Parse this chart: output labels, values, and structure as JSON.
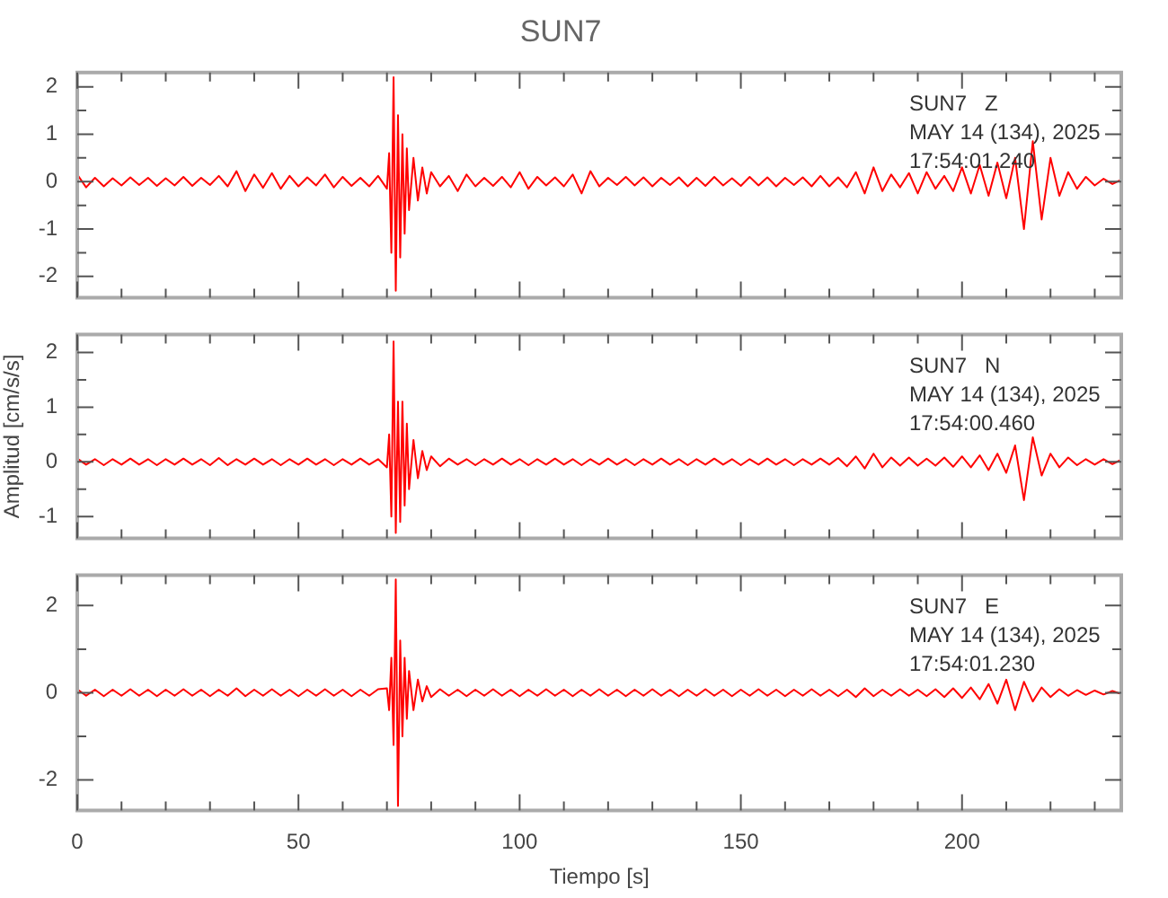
{
  "chart_data": [
    {
      "type": "line",
      "title": "SUN7",
      "tick_labels": "y",
      "annotations": [
        "SUN7   Z",
        "MAY 14 (134), 2025",
        "17:54:01.240"
      ],
      "xlim": [
        0,
        236
      ],
      "xticks": [
        0,
        {
          "value": 10,
          "label": null
        },
        {
          "value": 20,
          "label": null
        },
        {
          "value": 30,
          "label": null
        },
        {
          "value": 40,
          "label": null
        },
        50,
        {
          "value": 60,
          "label": null
        },
        {
          "value": 70,
          "label": null
        },
        {
          "value": 80,
          "label": null
        },
        {
          "value": 90,
          "label": null
        },
        100,
        {
          "value": 110,
          "label": null
        },
        {
          "value": 120,
          "label": null
        },
        {
          "value": 130,
          "label": null
        },
        {
          "value": 140,
          "label": null
        },
        150,
        {
          "value": 160,
          "label": null
        },
        {
          "value": 170,
          "label": null
        },
        {
          "value": 180,
          "label": null
        },
        {
          "value": 190,
          "label": null
        },
        200,
        {
          "value": 210,
          "label": null
        },
        {
          "value": 220,
          "label": null
        },
        {
          "value": 230,
          "label": null
        }
      ],
      "ylim": [
        -2.45,
        2.3
      ],
      "yticks": [
        -2,
        {
          "value": -1.5,
          "label": null
        },
        -1,
        {
          "value": -0.5,
          "label": null
        },
        0,
        {
          "value": 0.5,
          "label": null
        },
        1,
        {
          "value": 1.5,
          "label": null
        },
        2
      ],
      "x": [
        0,
        2,
        4,
        6,
        8,
        10,
        12,
        14,
        16,
        18,
        20,
        22,
        24,
        26,
        28,
        30,
        32,
        34,
        36,
        38,
        40,
        42,
        44,
        46,
        48,
        50,
        52,
        54,
        56,
        58,
        60,
        62,
        64,
        66,
        68,
        70,
        70.5,
        71,
        71.5,
        72,
        72.5,
        73,
        73.5,
        74,
        74.5,
        75,
        76,
        77,
        78,
        79,
        80,
        82,
        84,
        86,
        88,
        90,
        92,
        94,
        96,
        98,
        100,
        102,
        104,
        106,
        108,
        110,
        112,
        114,
        116,
        118,
        120,
        122,
        124,
        126,
        128,
        130,
        132,
        134,
        136,
        138,
        140,
        142,
        144,
        146,
        148,
        150,
        152,
        154,
        156,
        158,
        160,
        162,
        164,
        166,
        168,
        170,
        172,
        174,
        176,
        178,
        180,
        182,
        184,
        186,
        188,
        190,
        192,
        194,
        196,
        198,
        200,
        202,
        204,
        206,
        208,
        210,
        212,
        214,
        216,
        218,
        220,
        222,
        224,
        226,
        228,
        230,
        232,
        234,
        236
      ],
      "series": [
        {
          "color": "#ff0000",
          "values": [
            0.15,
            -0.12,
            0.08,
            -0.1,
            0.07,
            -0.08,
            0.09,
            -0.07,
            0.08,
            -0.09,
            0.07,
            -0.08,
            0.1,
            -0.09,
            0.08,
            -0.07,
            0.12,
            -0.1,
            0.22,
            -0.2,
            0.15,
            -0.13,
            0.18,
            -0.15,
            0.12,
            -0.1,
            0.09,
            -0.08,
            0.15,
            -0.12,
            0.1,
            -0.09,
            0.08,
            -0.1,
            0.12,
            -0.15,
            0.6,
            -1.5,
            2.2,
            -2.3,
            1.4,
            -1.6,
            1.0,
            -1.1,
            0.7,
            -0.6,
            0.5,
            -0.4,
            0.3,
            -0.25,
            0.2,
            -0.1,
            0.12,
            -0.2,
            0.15,
            -0.1,
            0.08,
            -0.09,
            0.1,
            -0.12,
            0.2,
            -0.15,
            0.1,
            -0.08,
            0.09,
            -0.1,
            0.15,
            -0.25,
            0.22,
            -0.1,
            0.08,
            -0.07,
            0.1,
            -0.08,
            0.09,
            -0.1,
            0.08,
            -0.07,
            0.09,
            -0.1,
            0.08,
            -0.09,
            0.1,
            -0.08,
            0.07,
            -0.09,
            0.1,
            -0.08,
            0.09,
            -0.1,
            0.08,
            -0.07,
            0.09,
            -0.1,
            0.12,
            -0.1,
            0.09,
            -0.12,
            0.2,
            -0.25,
            0.3,
            -0.2,
            0.15,
            -0.12,
            0.18,
            -0.25,
            0.2,
            -0.15,
            0.12,
            -0.2,
            0.3,
            -0.25,
            0.35,
            -0.3,
            0.4,
            -0.35,
            0.5,
            -1.0,
            0.85,
            -0.8,
            0.5,
            -0.3,
            0.2,
            -0.15,
            0.1,
            -0.08,
            0.06,
            -0.05,
            0.04
          ]
        }
      ]
    },
    {
      "type": "line",
      "ylabel": "Amplitud [cm/s/s]",
      "tick_labels": "y",
      "annotations": [
        "SUN7   N",
        "MAY 14 (134), 2025",
        "17:54:00.460"
      ],
      "xlim": [
        0,
        236
      ],
      "xticks": [
        0,
        {
          "value": 10,
          "label": null
        },
        {
          "value": 20,
          "label": null
        },
        {
          "value": 30,
          "label": null
        },
        {
          "value": 40,
          "label": null
        },
        50,
        {
          "value": 60,
          "label": null
        },
        {
          "value": 70,
          "label": null
        },
        {
          "value": 80,
          "label": null
        },
        {
          "value": 90,
          "label": null
        },
        100,
        {
          "value": 110,
          "label": null
        },
        {
          "value": 120,
          "label": null
        },
        {
          "value": 130,
          "label": null
        },
        {
          "value": 140,
          "label": null
        },
        150,
        {
          "value": 160,
          "label": null
        },
        {
          "value": 170,
          "label": null
        },
        {
          "value": 180,
          "label": null
        },
        {
          "value": 190,
          "label": null
        },
        200,
        {
          "value": 210,
          "label": null
        },
        {
          "value": 220,
          "label": null
        },
        {
          "value": 230,
          "label": null
        }
      ],
      "ylim": [
        -1.4,
        2.33
      ],
      "yticks": [
        -1,
        {
          "value": -0.5,
          "label": null
        },
        0,
        {
          "value": 0.5,
          "label": null
        },
        1,
        {
          "value": 1.5,
          "label": null
        },
        2
      ],
      "x": [
        0,
        2,
        4,
        6,
        8,
        10,
        12,
        14,
        16,
        18,
        20,
        22,
        24,
        26,
        28,
        30,
        32,
        34,
        36,
        38,
        40,
        42,
        44,
        46,
        48,
        50,
        52,
        54,
        56,
        58,
        60,
        62,
        64,
        66,
        68,
        70,
        70.5,
        71,
        71.5,
        72,
        72.5,
        73,
        73.5,
        74,
        74.5,
        75,
        76,
        77,
        78,
        79,
        80,
        82,
        84,
        86,
        88,
        90,
        92,
        94,
        96,
        98,
        100,
        102,
        104,
        106,
        108,
        110,
        112,
        114,
        116,
        118,
        120,
        122,
        124,
        126,
        128,
        130,
        132,
        134,
        136,
        138,
        140,
        142,
        144,
        146,
        148,
        150,
        152,
        154,
        156,
        158,
        160,
        162,
        164,
        166,
        168,
        170,
        172,
        174,
        176,
        178,
        180,
        182,
        184,
        186,
        188,
        190,
        192,
        194,
        196,
        198,
        200,
        202,
        204,
        206,
        208,
        210,
        212,
        214,
        216,
        218,
        220,
        222,
        224,
        226,
        228,
        230,
        232,
        234,
        236
      ],
      "series": [
        {
          "color": "#ff0000",
          "values": [
            0.06,
            -0.05,
            0.05,
            -0.06,
            0.05,
            -0.05,
            0.06,
            -0.05,
            0.05,
            -0.06,
            0.05,
            -0.05,
            0.06,
            -0.05,
            0.05,
            -0.06,
            0.07,
            -0.06,
            0.05,
            -0.05,
            0.06,
            -0.05,
            0.05,
            -0.06,
            0.05,
            -0.05,
            0.06,
            -0.05,
            0.05,
            -0.06,
            0.05,
            -0.05,
            0.06,
            -0.05,
            0.05,
            -0.1,
            0.5,
            -1.0,
            2.2,
            -1.3,
            1.1,
            -1.1,
            1.1,
            -0.8,
            0.7,
            -0.5,
            0.4,
            -0.3,
            0.2,
            -0.15,
            0.1,
            -0.08,
            0.06,
            -0.05,
            0.05,
            -0.06,
            0.05,
            -0.05,
            0.06,
            -0.05,
            0.05,
            -0.06,
            0.05,
            -0.05,
            0.06,
            -0.05,
            0.05,
            -0.06,
            0.05,
            -0.05,
            0.06,
            -0.05,
            0.05,
            -0.06,
            0.05,
            -0.05,
            0.06,
            -0.05,
            0.05,
            -0.06,
            0.05,
            -0.05,
            0.06,
            -0.05,
            0.05,
            -0.06,
            0.05,
            -0.05,
            0.06,
            -0.05,
            0.05,
            -0.06,
            0.05,
            -0.05,
            0.06,
            -0.05,
            0.07,
            -0.08,
            0.1,
            -0.12,
            0.15,
            -0.1,
            0.08,
            -0.07,
            0.08,
            -0.07,
            0.06,
            -0.07,
            0.08,
            -0.09,
            0.1,
            -0.1,
            0.12,
            -0.15,
            0.15,
            -0.2,
            0.3,
            -0.7,
            0.45,
            -0.25,
            0.15,
            -0.1,
            0.08,
            -0.06,
            0.05,
            -0.05,
            0.05,
            -0.04,
            0.04
          ]
        }
      ]
    },
    {
      "type": "line",
      "xlabel": "Tiempo [s]",
      "annotations": [
        "SUN7   E",
        "MAY 14 (134), 2025",
        "17:54:01.230"
      ],
      "xlim": [
        0,
        236
      ],
      "xticks": [
        0,
        {
          "value": 10,
          "label": null
        },
        {
          "value": 20,
          "label": null
        },
        {
          "value": 30,
          "label": null
        },
        {
          "value": 40,
          "label": null
        },
        50,
        {
          "value": 60,
          "label": null
        },
        {
          "value": 70,
          "label": null
        },
        {
          "value": 80,
          "label": null
        },
        {
          "value": 90,
          "label": null
        },
        100,
        {
          "value": 110,
          "label": null
        },
        {
          "value": 120,
          "label": null
        },
        {
          "value": 130,
          "label": null
        },
        {
          "value": 140,
          "label": null
        },
        150,
        {
          "value": 160,
          "label": null
        },
        {
          "value": 170,
          "label": null
        },
        {
          "value": 180,
          "label": null
        },
        {
          "value": 190,
          "label": null
        },
        200,
        {
          "value": 210,
          "label": null
        },
        {
          "value": 220,
          "label": null
        },
        {
          "value": 230,
          "label": null
        }
      ],
      "ylim": [
        -2.7,
        2.7
      ],
      "yticks": [
        -2,
        {
          "value": -1,
          "label": null
        },
        0,
        {
          "value": 1,
          "label": null
        },
        2
      ],
      "x": [
        0,
        2,
        4,
        6,
        8,
        10,
        12,
        14,
        16,
        18,
        20,
        22,
        24,
        26,
        28,
        30,
        32,
        34,
        36,
        38,
        40,
        42,
        44,
        46,
        48,
        50,
        52,
        54,
        56,
        58,
        60,
        62,
        64,
        66,
        68,
        70,
        70.5,
        71,
        71.5,
        72,
        72.5,
        73,
        73.5,
        74,
        74.5,
        75,
        76,
        77,
        78,
        79,
        80,
        82,
        84,
        86,
        88,
        90,
        92,
        94,
        96,
        98,
        100,
        102,
        104,
        106,
        108,
        110,
        112,
        114,
        116,
        118,
        120,
        122,
        124,
        126,
        128,
        130,
        132,
        134,
        136,
        138,
        140,
        142,
        144,
        146,
        148,
        150,
        152,
        154,
        156,
        158,
        160,
        162,
        164,
        166,
        168,
        170,
        172,
        174,
        176,
        178,
        180,
        182,
        184,
        186,
        188,
        190,
        192,
        194,
        196,
        198,
        200,
        202,
        204,
        206,
        208,
        210,
        212,
        214,
        216,
        218,
        220,
        222,
        224,
        226,
        228,
        230,
        232,
        234,
        236
      ],
      "series": [
        {
          "color": "#ff0000",
          "values": [
            0.08,
            -0.07,
            0.07,
            -0.08,
            0.07,
            -0.07,
            0.08,
            -0.07,
            0.07,
            -0.08,
            0.07,
            -0.07,
            0.08,
            -0.07,
            0.07,
            -0.08,
            0.07,
            -0.07,
            0.1,
            -0.08,
            0.07,
            -0.07,
            0.08,
            -0.07,
            0.07,
            -0.08,
            0.07,
            -0.07,
            0.08,
            -0.07,
            0.07,
            -0.08,
            0.07,
            -0.07,
            0.08,
            0.1,
            -0.4,
            0.8,
            -1.2,
            2.6,
            -2.6,
            1.2,
            -1.0,
            0.8,
            -0.6,
            0.5,
            -0.4,
            0.3,
            -0.2,
            0.15,
            -0.1,
            0.08,
            -0.07,
            0.07,
            -0.08,
            0.07,
            -0.07,
            0.08,
            -0.07,
            0.07,
            -0.08,
            0.07,
            -0.07,
            0.08,
            -0.07,
            0.07,
            -0.08,
            0.07,
            -0.07,
            0.08,
            -0.07,
            0.07,
            -0.08,
            0.07,
            -0.07,
            0.08,
            -0.07,
            0.07,
            -0.08,
            0.07,
            -0.07,
            0.08,
            -0.07,
            0.07,
            -0.08,
            0.07,
            -0.07,
            0.08,
            -0.07,
            0.07,
            -0.08,
            0.07,
            -0.07,
            0.08,
            -0.07,
            0.07,
            -0.08,
            0.07,
            -0.1,
            0.1,
            -0.08,
            0.07,
            -0.07,
            0.08,
            -0.07,
            0.07,
            -0.08,
            0.08,
            -0.1,
            0.1,
            -0.12,
            0.12,
            -0.15,
            0.2,
            -0.25,
            0.3,
            -0.4,
            0.25,
            -0.2,
            0.12,
            -0.1,
            0.08,
            -0.07,
            0.06,
            -0.05,
            0.05,
            -0.04,
            0.04,
            -0.03
          ]
        }
      ]
    }
  ]
}
